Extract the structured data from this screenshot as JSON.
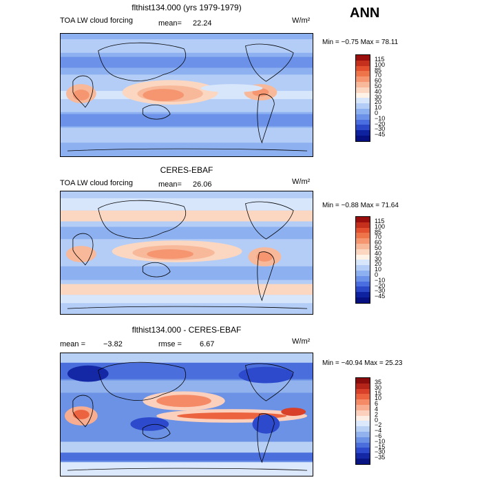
{
  "season": "ANN",
  "panels": [
    {
      "title": "flthist134.000 (yrs 1979-1979)",
      "subtitle": "TOA LW cloud forcing",
      "stat_label_1": "mean=",
      "stat_value_1": "22.24",
      "units": "W/m²",
      "range_text": "Min =   −0.75  Max =   78.11",
      "levels": [
        "115",
        "100",
        "85",
        "70",
        "60",
        "50",
        "40",
        "30",
        "20",
        "10",
        "0",
        "−10",
        "−20",
        "−30",
        "−45"
      ],
      "colors": [
        "#9b0e0e",
        "#c4301c",
        "#e2502f",
        "#ee7549",
        "#f59671",
        "#f8b89a",
        "#fbd7c1",
        "#fff2e6",
        "#d7e6fb",
        "#b4cdf6",
        "#8db0f0",
        "#6b92e8",
        "#4a6ddf",
        "#2a48c8",
        "#0e22a0",
        "#061080"
      ]
    },
    {
      "title": "CERES-EBAF",
      "subtitle": "TOA LW cloud forcing",
      "stat_label_1": "mean=",
      "stat_value_1": "26.06",
      "units": "W/m²",
      "range_text": "Min =   −0.88  Max =   71.64",
      "levels": [
        "115",
        "100",
        "85",
        "70",
        "60",
        "50",
        "40",
        "30",
        "20",
        "10",
        "0",
        "−10",
        "−20",
        "−30",
        "−45"
      ],
      "colors": [
        "#9b0e0e",
        "#c4301c",
        "#e2502f",
        "#ee7549",
        "#f59671",
        "#f8b89a",
        "#fbd7c1",
        "#fff2e6",
        "#d7e6fb",
        "#b4cdf6",
        "#8db0f0",
        "#6b92e8",
        "#4a6ddf",
        "#2a48c8",
        "#0e22a0",
        "#061080"
      ]
    },
    {
      "title": "flthist134.000 - CERES-EBAF",
      "subtitle": "",
      "stat_label_1": "mean =",
      "stat_value_1": "−3.82",
      "stat_label_2": "rmse =",
      "stat_value_2": "6.67",
      "units": "W/m²",
      "range_text": "Min =  −40.94  Max =   25.23",
      "levels": [
        "35",
        "30",
        "15",
        "10",
        "6",
        "4",
        "2",
        "0",
        "−2",
        "−4",
        "−6",
        "−10",
        "−15",
        "−30",
        "−35"
      ],
      "colors": [
        "#8b0c0c",
        "#b52418",
        "#d8402a",
        "#ec643f",
        "#f48a66",
        "#f8ad90",
        "#fbd0bd",
        "#fdeee5",
        "#dce8fb",
        "#b9d0f5",
        "#92b2ee",
        "#6c92e5",
        "#4a6edc",
        "#2c4acb",
        "#1428a6",
        "#0a1584"
      ]
    }
  ]
}
